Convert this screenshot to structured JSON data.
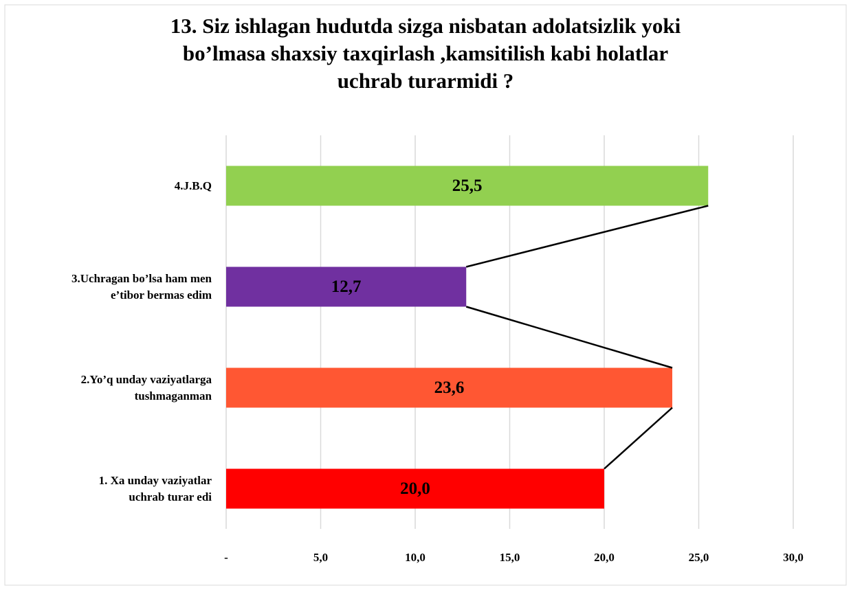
{
  "chart_data": {
    "type": "bar",
    "orientation": "horizontal",
    "title": "13. Siz ishlagan hudutda sizga nisbatan adolatsizlik yoki\nbo’lmasa shaxsiy taxqirlash ,kamsitilish  kabi holatlar\nuchrab turarmidi ?",
    "categories": [
      "1. Xa unday vaziyatlar\nuchrab turar edi",
      "2.Yo’q unday vaziyatlarga\ntushmaganman",
      "3.Uchragan bo’lsa ham men\ne’tibor bermas edim",
      "4.J.B.Q"
    ],
    "values": [
      20.0,
      23.6,
      12.7,
      25.5
    ],
    "value_labels": [
      "20,0",
      "23,6",
      "12,7",
      "25,5"
    ],
    "colors": [
      "#ff0000",
      "#ff5733",
      "#7030a0",
      "#92d050"
    ],
    "xlim": [
      0,
      30
    ],
    "xticks": [
      {
        "value": 0,
        "label": "-"
      },
      {
        "value": 5,
        "label": "5,0"
      },
      {
        "value": 10,
        "label": "10,0"
      },
      {
        "value": 15,
        "label": "15,0"
      },
      {
        "value": 20,
        "label": "20,0"
      },
      {
        "value": 25,
        "label": "25,0"
      },
      {
        "value": 30,
        "label": "30,0"
      }
    ],
    "grid": true,
    "series_lines": true
  }
}
